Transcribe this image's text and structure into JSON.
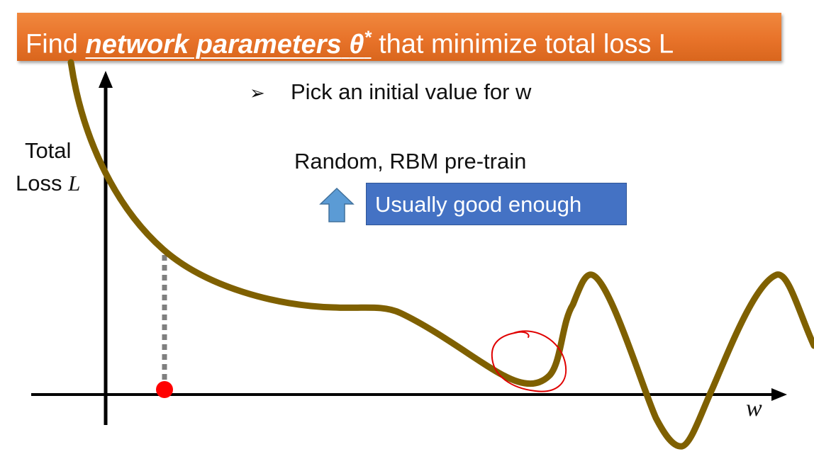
{
  "banner": {
    "prefix": "Find ",
    "emphasis": "network parameters",
    "theta": "θ",
    "star": "*",
    "suffix": " that minimize total loss L"
  },
  "bullet": {
    "icon": "arrowhead-bullet-icon",
    "text": "Pick an initial value for w"
  },
  "axes": {
    "ylabel_line1": "Total",
    "ylabel_line2_prefix": "Loss ",
    "ylabel_line2_var": "L",
    "xlabel": "w"
  },
  "annotations": {
    "init_methods": "Random, RBM pre-train",
    "good_enough": "Usually good enough"
  },
  "colors": {
    "banner": "#e8732a",
    "curve": "#7f6000",
    "box": "#4472c4",
    "arrow": "#5b9bd5",
    "point": "#ff0000",
    "circle": "#e00000"
  }
}
